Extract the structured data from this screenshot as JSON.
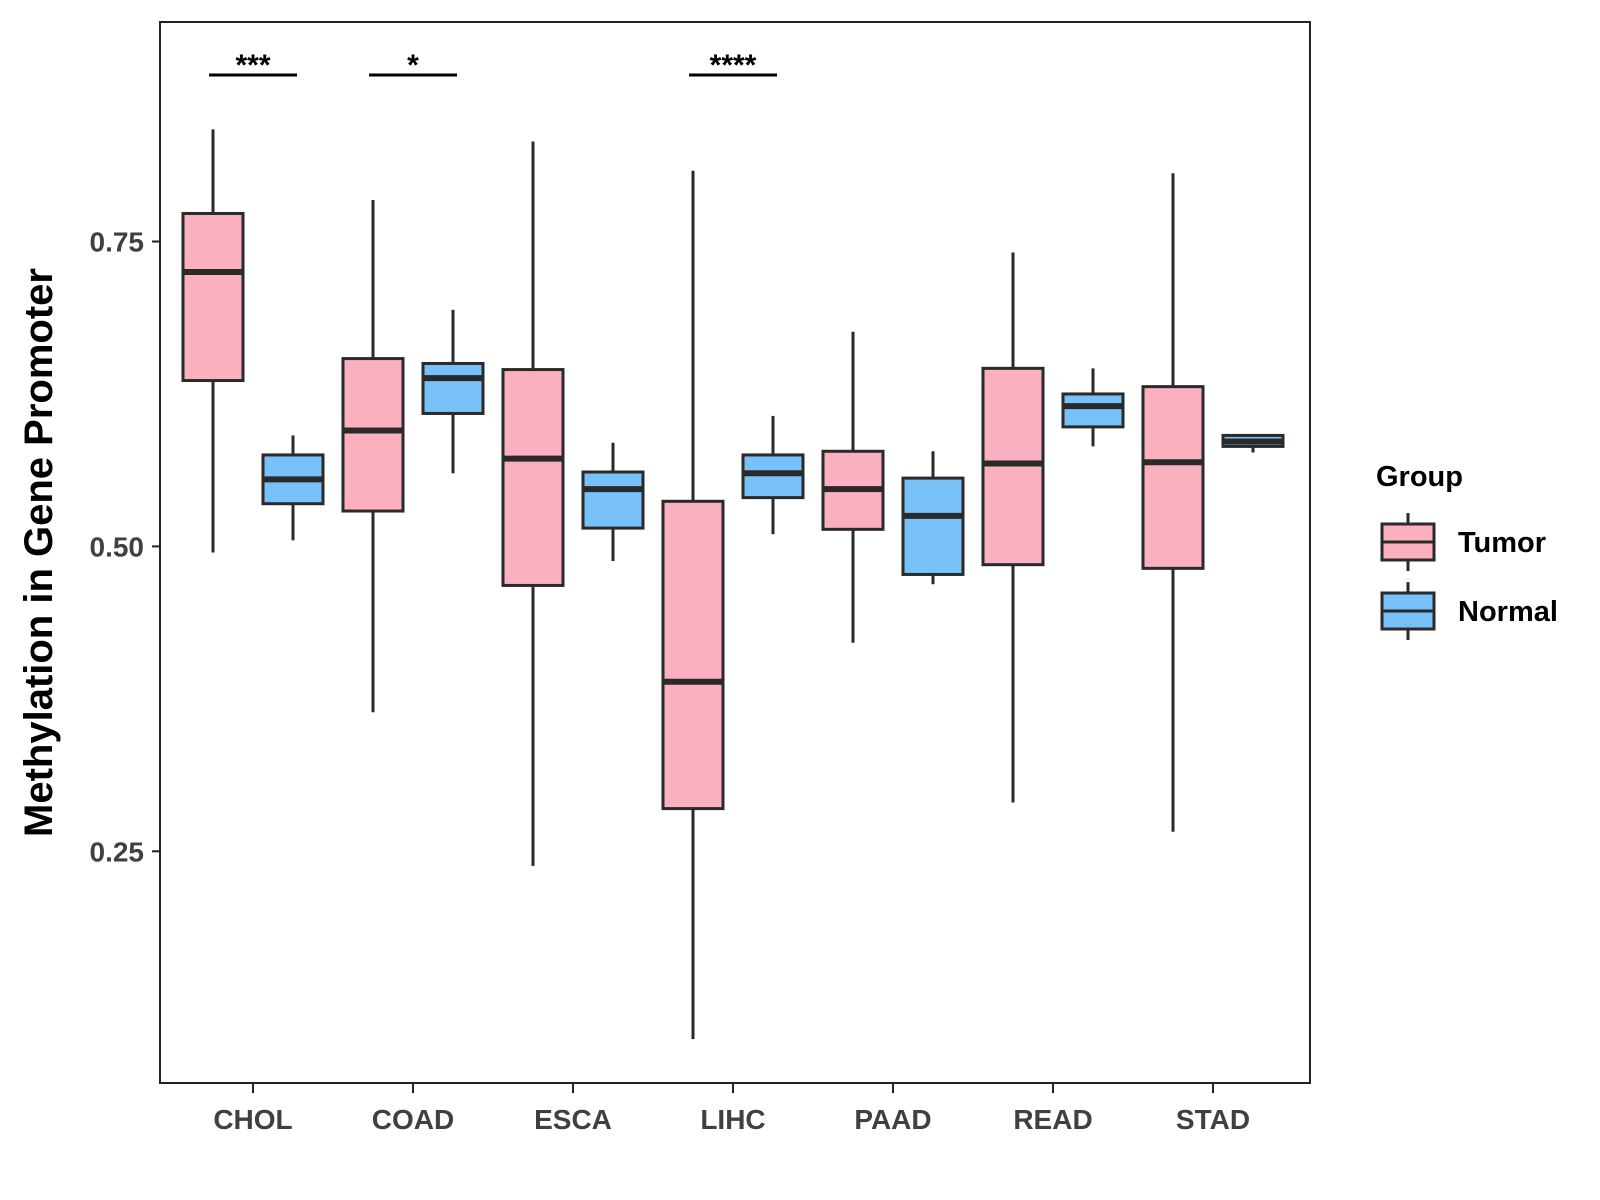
{
  "chart_data": {
    "type": "boxplot",
    "title": "",
    "xlabel": "",
    "ylabel": "Methylation in Gene Promoter",
    "ylim": [
      0.06,
      0.93
    ],
    "yticks": [
      0.25,
      0.5,
      0.75
    ],
    "ytick_labels": [
      "0.25",
      "0.50",
      "0.75"
    ],
    "categories": [
      "CHOL",
      "COAD",
      "ESCA",
      "LIHC",
      "PAAD",
      "READ",
      "STAD"
    ],
    "legend": {
      "title": "Group",
      "position": "right",
      "entries": [
        "Tumor",
        "Normal"
      ]
    },
    "colors": {
      "Tumor": "#fbb0c0",
      "Normal": "#77c0f8",
      "outline": "#2a2a2a"
    },
    "series": [
      {
        "name": "Tumor",
        "boxes": [
          {
            "category": "CHOL",
            "min": 0.495,
            "q1": 0.636,
            "median": 0.725,
            "q3": 0.773,
            "max": 0.842
          },
          {
            "category": "COAD",
            "min": 0.364,
            "q1": 0.529,
            "median": 0.595,
            "q3": 0.654,
            "max": 0.784
          },
          {
            "category": "ESCA",
            "min": 0.238,
            "q1": 0.468,
            "median": 0.572,
            "q3": 0.645,
            "max": 0.832
          },
          {
            "category": "LIHC",
            "min": 0.096,
            "q1": 0.285,
            "median": 0.389,
            "q3": 0.537,
            "max": 0.808
          },
          {
            "category": "PAAD",
            "min": 0.421,
            "q1": 0.514,
            "median": 0.547,
            "q3": 0.578,
            "max": 0.676
          },
          {
            "category": "READ",
            "min": 0.29,
            "q1": 0.485,
            "median": 0.568,
            "q3": 0.646,
            "max": 0.741
          },
          {
            "category": "STAD",
            "min": 0.266,
            "q1": 0.482,
            "median": 0.569,
            "q3": 0.631,
            "max": 0.806
          }
        ]
      },
      {
        "name": "Normal",
        "boxes": [
          {
            "category": "CHOL",
            "min": 0.505,
            "q1": 0.535,
            "median": 0.555,
            "q3": 0.575,
            "max": 0.591
          },
          {
            "category": "COAD",
            "min": 0.56,
            "q1": 0.609,
            "median": 0.638,
            "q3": 0.65,
            "max": 0.694
          },
          {
            "category": "ESCA",
            "min": 0.488,
            "q1": 0.515,
            "median": 0.547,
            "q3": 0.561,
            "max": 0.585
          },
          {
            "category": "LIHC",
            "min": 0.51,
            "q1": 0.54,
            "median": 0.56,
            "q3": 0.575,
            "max": 0.607
          },
          {
            "category": "PAAD",
            "min": 0.469,
            "q1": 0.477,
            "median": 0.525,
            "q3": 0.556,
            "max": 0.578
          },
          {
            "category": "READ",
            "min": 0.582,
            "q1": 0.598,
            "median": 0.615,
            "q3": 0.625,
            "max": 0.646
          },
          {
            "category": "STAD",
            "min": 0.577,
            "q1": 0.582,
            "median": 0.586,
            "q3": 0.591,
            "max": 0.592
          }
        ]
      }
    ],
    "annotations": [
      {
        "category": "CHOL",
        "label": "***"
      },
      {
        "category": "COAD",
        "label": "*"
      },
      {
        "category": "LIHC",
        "label": "****"
      }
    ]
  }
}
